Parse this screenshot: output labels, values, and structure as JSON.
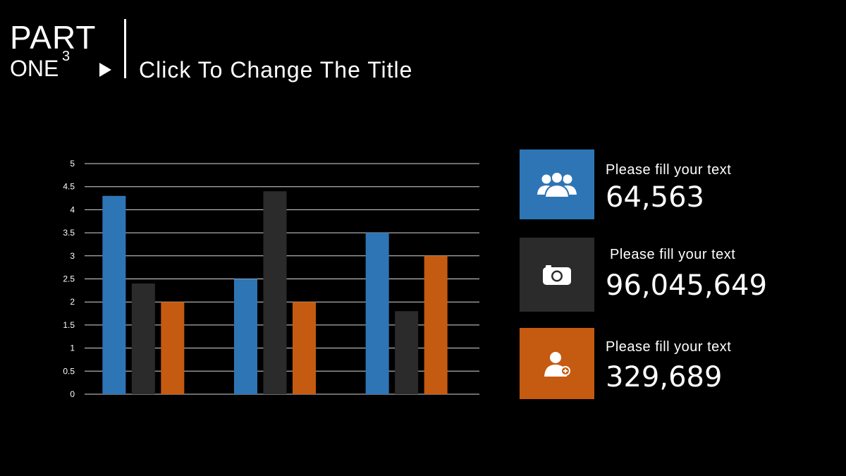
{
  "header": {
    "part": "PART",
    "one": "ONE",
    "superscript": "3",
    "title": "Click To Change The Title"
  },
  "chart_data": {
    "type": "bar",
    "categories": [
      "",
      "",
      ""
    ],
    "series": [
      {
        "values": [
          4.3,
          2.5,
          3.5
        ],
        "color": "#2e75b6"
      },
      {
        "values": [
          2.4,
          4.4,
          1.8
        ],
        "color": "#2b2b2b"
      },
      {
        "values": [
          2.0,
          2.0,
          3.0
        ],
        "color": "#c55a11"
      }
    ],
    "ylim": [
      0,
      5
    ],
    "yticks": [
      "0",
      "0.5",
      "1",
      "1.5",
      "2",
      "2.5",
      "3",
      "3.5",
      "4",
      "4.5",
      "5"
    ],
    "grid": true,
    "gridline_color": "#d9d9d9"
  },
  "stats": [
    {
      "label": "Please fill your text",
      "value": "64,563",
      "icon": "users-icon",
      "color": "#2e75b6"
    },
    {
      "label": "Please fill your text",
      "value": "96,045,649",
      "icon": "camera-icon",
      "color": "#2b2b2b"
    },
    {
      "label": "Please fill your text",
      "value": "329,689",
      "icon": "add-user-icon",
      "color": "#c55a11"
    }
  ]
}
